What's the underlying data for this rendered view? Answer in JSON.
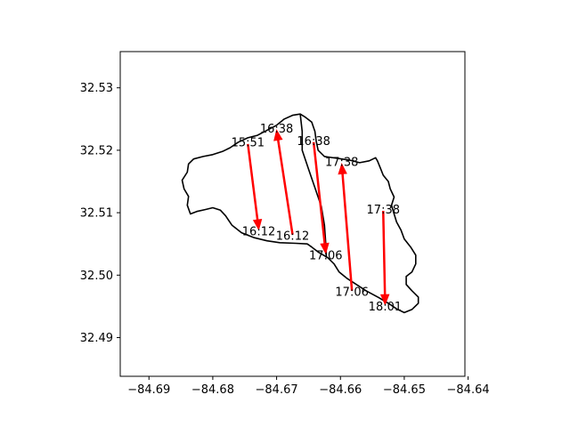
{
  "chart_data": {
    "type": "map-track",
    "title": "",
    "xlabel": "",
    "ylabel": "",
    "xlim": [
      -84.6945,
      -84.6405
    ],
    "ylim": [
      32.4838,
      32.5358
    ],
    "xticks": [
      -84.69,
      -84.68,
      -84.67,
      -84.66,
      -84.65,
      -84.64
    ],
    "yticks": [
      32.49,
      32.5,
      32.51,
      32.52,
      32.53
    ],
    "xtick_labels": [
      "−84.69",
      "−84.68",
      "−84.67",
      "−84.66",
      "−84.65",
      "−84.64"
    ],
    "ytick_labels": [
      "32.49",
      "32.50",
      "32.51",
      "32.52",
      "32.53"
    ],
    "boundary_color": "#000000",
    "arrow_color": "#ff0000",
    "boundary": [
      [
        -84.6835,
        32.5098
      ],
      [
        -84.6825,
        32.5102
      ],
      [
        -84.6812,
        32.5105
      ],
      [
        -84.68,
        32.5108
      ],
      [
        -84.6788,
        32.5104
      ],
      [
        -84.678,
        32.5095
      ],
      [
        -84.677,
        32.508
      ],
      [
        -84.6755,
        32.5068
      ],
      [
        -84.6735,
        32.506
      ],
      [
        -84.6715,
        32.5055
      ],
      [
        -84.6695,
        32.5052
      ],
      [
        -84.667,
        32.5051
      ],
      [
        -84.6652,
        32.505
      ],
      [
        -84.6645,
        32.5045
      ],
      [
        -84.6635,
        32.5037
      ],
      [
        -84.662,
        32.5028
      ],
      [
        -84.661,
        32.5018
      ],
      [
        -84.6602,
        32.5005
      ],
      [
        -84.659,
        32.4995
      ],
      [
        -84.6575,
        32.4985
      ],
      [
        -84.656,
        32.4975
      ],
      [
        -84.654,
        32.4964
      ],
      [
        -84.6525,
        32.4955
      ],
      [
        -84.6512,
        32.4946
      ],
      [
        -84.65,
        32.494
      ],
      [
        -84.6488,
        32.4945
      ],
      [
        -84.6478,
        32.4955
      ],
      [
        -84.6478,
        32.4965
      ],
      [
        -84.6488,
        32.4975
      ],
      [
        -84.6497,
        32.4985
      ],
      [
        -84.6497,
        32.4998
      ],
      [
        -84.6488,
        32.5005
      ],
      [
        -84.6482,
        32.5018
      ],
      [
        -84.6482,
        32.5032
      ],
      [
        -84.649,
        32.5045
      ],
      [
        -84.65,
        32.5058
      ],
      [
        -84.6505,
        32.5072
      ],
      [
        -84.6512,
        32.5085
      ],
      [
        -84.6516,
        32.5098
      ],
      [
        -84.652,
        32.5112
      ],
      [
        -84.6516,
        32.5125
      ],
      [
        -84.6522,
        32.5138
      ],
      [
        -84.6525,
        32.515
      ],
      [
        -84.6533,
        32.516
      ],
      [
        -84.6538,
        32.5173
      ],
      [
        -84.6542,
        32.5183
      ],
      [
        -84.6545,
        32.5188
      ],
      [
        -84.6555,
        32.5183
      ],
      [
        -84.657,
        32.518
      ],
      [
        -84.6585,
        32.5184
      ],
      [
        -84.6605,
        32.5187
      ],
      [
        -84.6625,
        32.519
      ],
      [
        -84.6635,
        32.52
      ],
      [
        -84.6638,
        32.5215
      ],
      [
        -84.664,
        32.523
      ],
      [
        -84.6645,
        32.5245
      ],
      [
        -84.6655,
        32.5253
      ],
      [
        -84.6663,
        32.5258
      ],
      [
        -84.6675,
        32.5256
      ],
      [
        -84.6688,
        32.525
      ],
      [
        -84.67,
        32.524
      ],
      [
        -84.6715,
        32.5232
      ],
      [
        -84.673,
        32.5224
      ],
      [
        -84.6745,
        32.522
      ],
      [
        -84.676,
        32.5213
      ],
      [
        -84.6773,
        32.5204
      ],
      [
        -84.6785,
        32.5198
      ],
      [
        -84.68,
        32.5193
      ],
      [
        -84.6815,
        32.519
      ],
      [
        -84.683,
        32.5186
      ],
      [
        -84.6838,
        32.5178
      ],
      [
        -84.684,
        32.5165
      ],
      [
        -84.6848,
        32.5152
      ],
      [
        -84.6845,
        32.5138
      ],
      [
        -84.6838,
        32.5126
      ],
      [
        -84.684,
        32.5112
      ],
      [
        -84.6835,
        32.5098
      ]
    ],
    "divider": [
      [
        -84.6663,
        32.5258
      ],
      [
        -84.666,
        32.523
      ],
      [
        -84.666,
        32.52
      ],
      [
        -84.665,
        32.517
      ],
      [
        -84.664,
        32.514
      ],
      [
        -84.663,
        32.511
      ],
      [
        -84.6625,
        32.508
      ],
      [
        -84.6623,
        32.505
      ],
      [
        -84.6622,
        32.5028
      ]
    ],
    "arrows": [
      {
        "from": [
          -84.6745,
          32.521
        ],
        "to": [
          -84.6728,
          32.5073
        ]
      },
      {
        "from": [
          -84.6675,
          32.5065
        ],
        "to": [
          -84.67,
          32.5232
        ]
      },
      {
        "from": [
          -84.6642,
          32.5213
        ],
        "to": [
          -84.6623,
          32.5035
        ]
      },
      {
        "from": [
          -84.6582,
          32.4975
        ],
        "to": [
          -84.6598,
          32.5178
        ]
      },
      {
        "from": [
          -84.6533,
          32.5103
        ],
        "to": [
          -84.653,
          32.4953
        ]
      }
    ],
    "labels": [
      {
        "text": "15:51",
        "x": -84.6745,
        "y": 32.5213
      },
      {
        "text": "16:38",
        "x": -84.67,
        "y": 32.5235
      },
      {
        "text": "16:38",
        "x": -84.6642,
        "y": 32.5215
      },
      {
        "text": "17:38",
        "x": -84.6598,
        "y": 32.5181
      },
      {
        "text": "17:38",
        "x": -84.6533,
        "y": 32.5105
      },
      {
        "text": "16:12",
        "x": -84.6728,
        "y": 32.507
      },
      {
        "text": "16:12",
        "x": -84.6675,
        "y": 32.5063
      },
      {
        "text": "17:06",
        "x": -84.6623,
        "y": 32.5032
      },
      {
        "text": "17:06",
        "x": -84.6582,
        "y": 32.4973
      },
      {
        "text": "18:01",
        "x": -84.653,
        "y": 32.495
      }
    ]
  }
}
